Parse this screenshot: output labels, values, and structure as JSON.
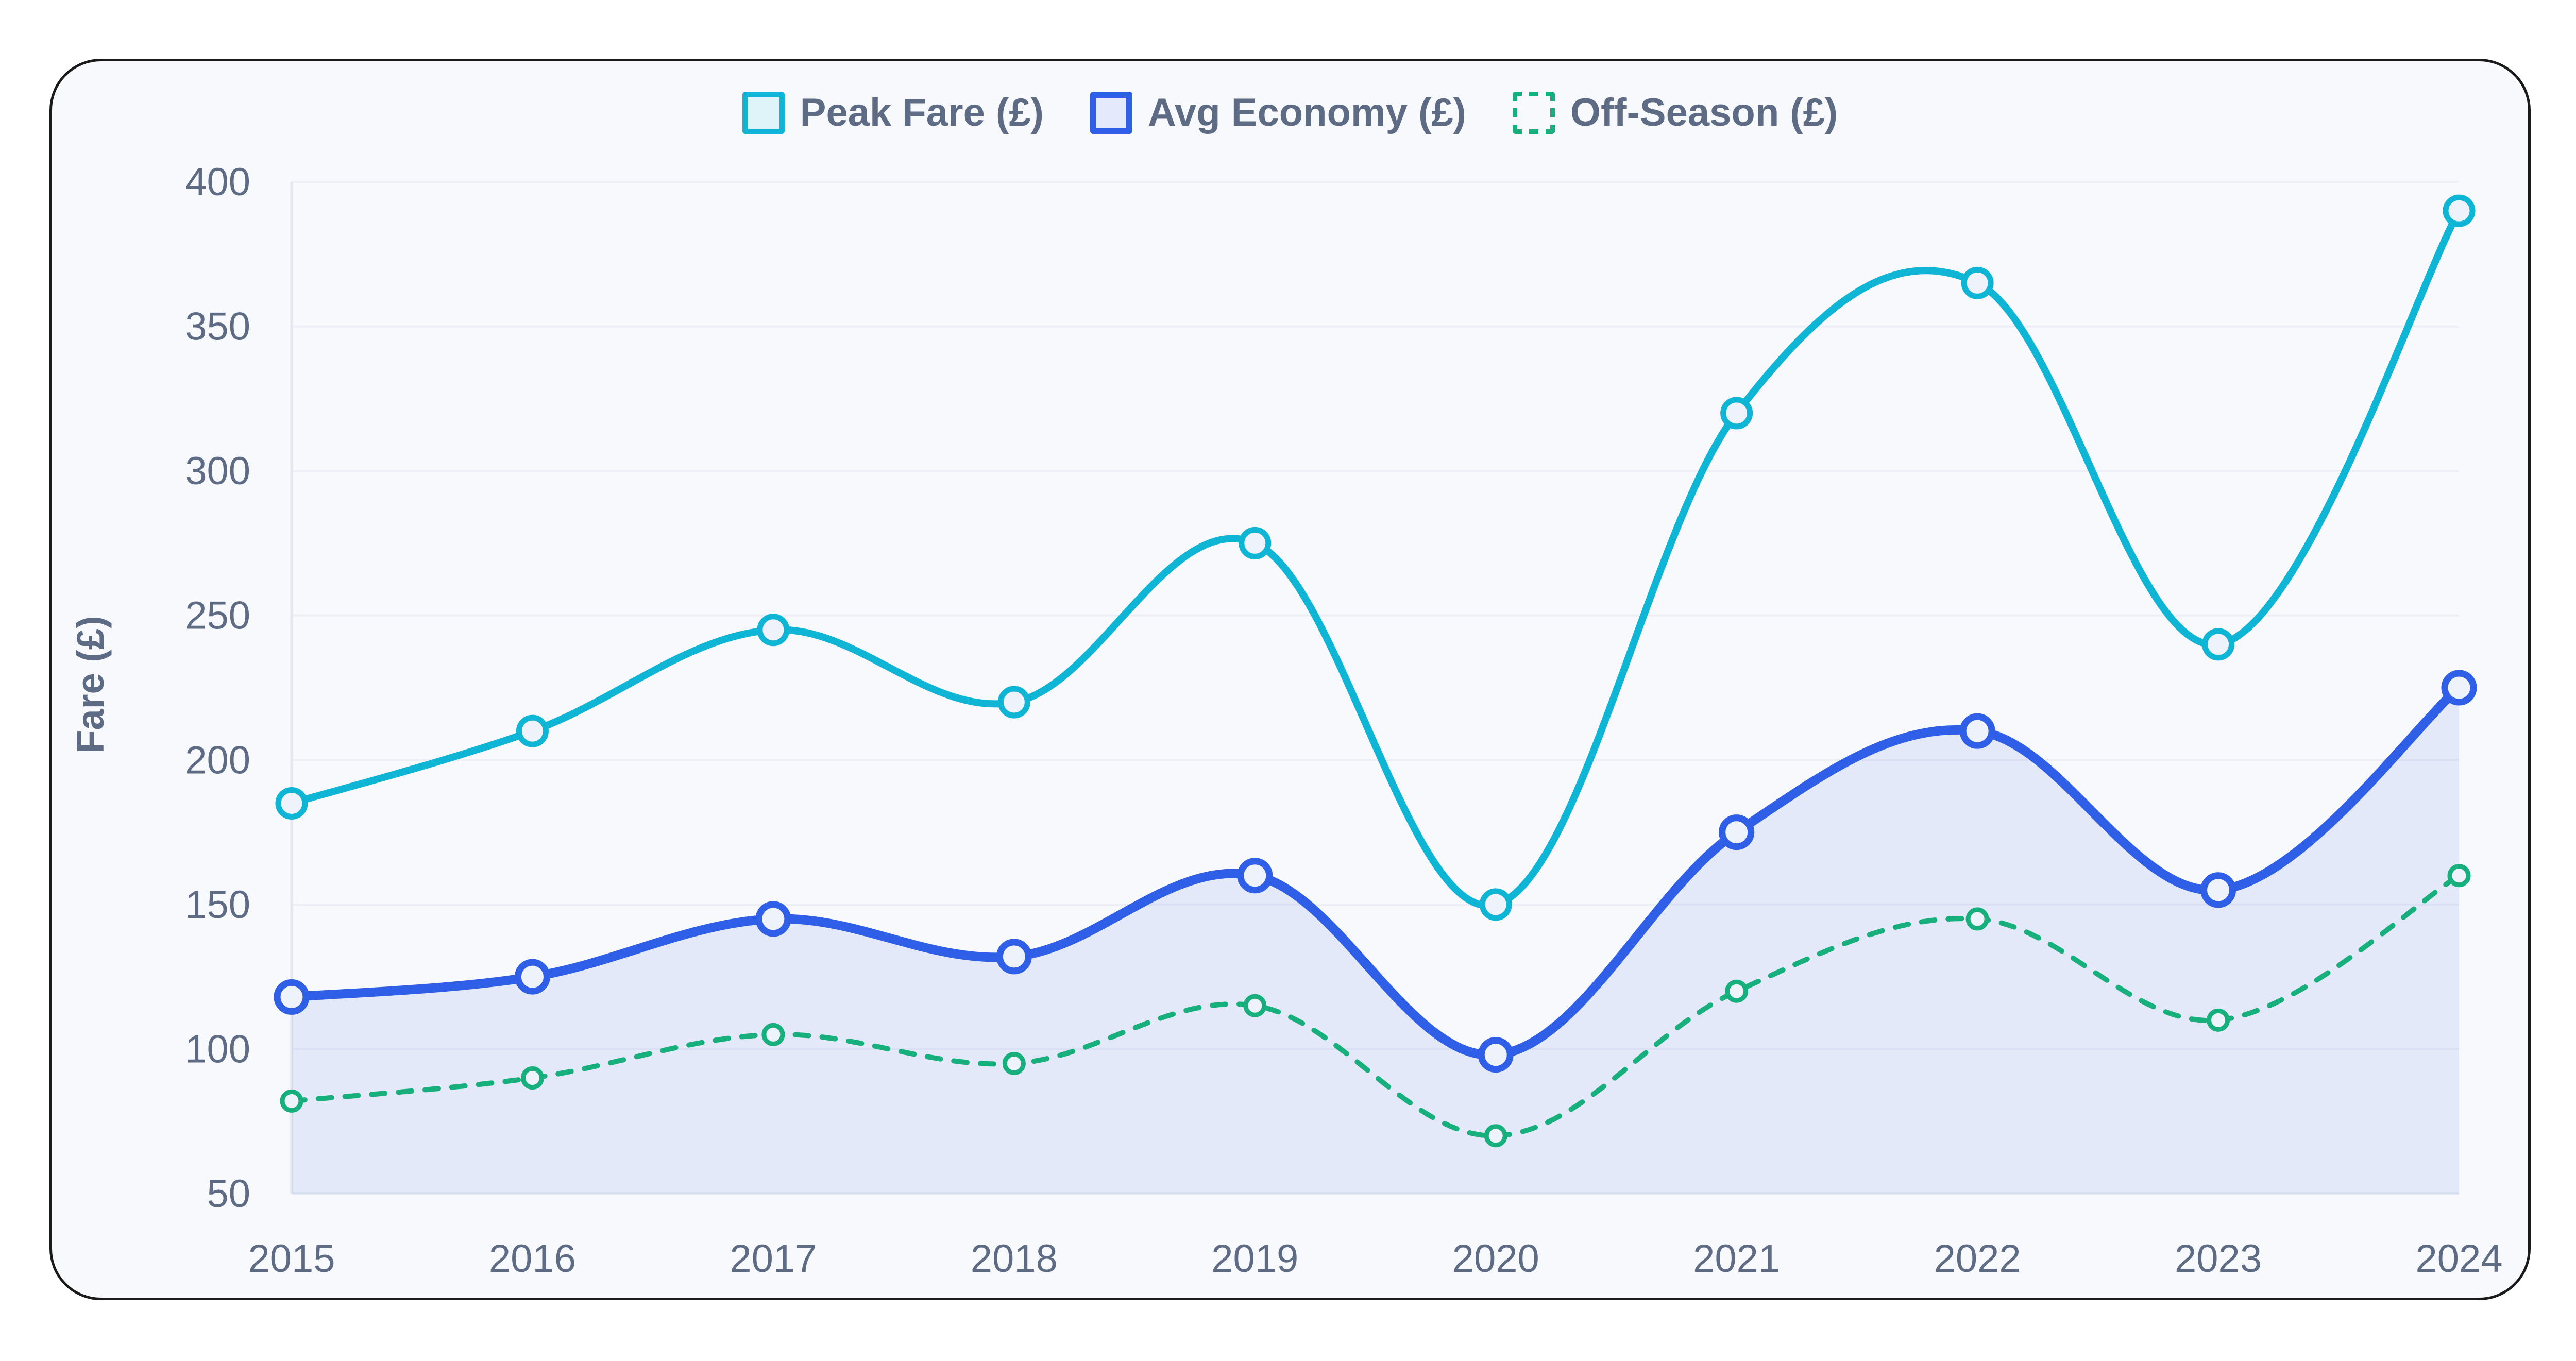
{
  "chart_data": {
    "type": "line",
    "title": "",
    "xlabel": "",
    "ylabel": "Fare (£)",
    "categories": [
      "2015",
      "2016",
      "2017",
      "2018",
      "2019",
      "2020",
      "2021",
      "2022",
      "2023",
      "2024"
    ],
    "ylim": [
      50,
      400
    ],
    "yticks": [
      50,
      100,
      150,
      200,
      250,
      300,
      350,
      400
    ],
    "grid": true,
    "legend": "top-center",
    "series": [
      {
        "name": "Peak Fare (£)",
        "color": "#0fb5d4",
        "style": "solid",
        "fill": false,
        "values": [
          185,
          210,
          245,
          220,
          275,
          150,
          320,
          365,
          240,
          390
        ]
      },
      {
        "name": "Avg Economy (£)",
        "color": "#2f5fe6",
        "style": "solid",
        "fill": true,
        "values": [
          118,
          125,
          145,
          132,
          160,
          98,
          175,
          210,
          155,
          225
        ]
      },
      {
        "name": "Off-Season (£)",
        "color": "#17b07c",
        "style": "dashed",
        "fill": false,
        "values": [
          82,
          90,
          105,
          95,
          115,
          70,
          120,
          145,
          110,
          160
        ]
      }
    ]
  }
}
